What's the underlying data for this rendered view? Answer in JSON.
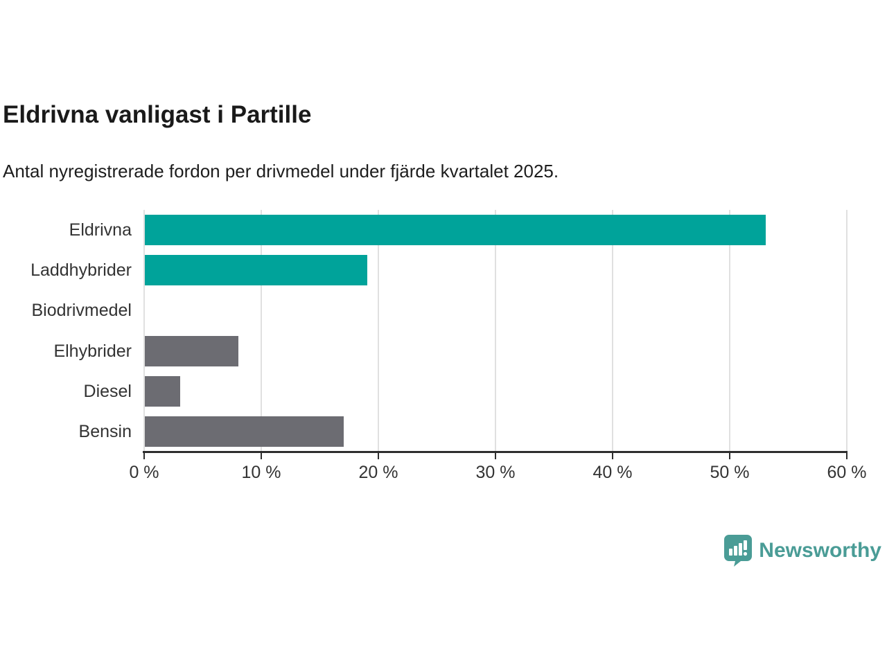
{
  "header": {
    "title": "Eldrivna vanligast i Partille",
    "subtitle": "Antal nyregistrerade fordon per drivmedel under fjärde kvartalet 2025."
  },
  "chart_data": {
    "type": "bar",
    "orientation": "horizontal",
    "title": "Eldrivna vanligast i Partille",
    "subtitle": "Antal nyregistrerade fordon per drivmedel under fjärde kvartalet 2025.",
    "categories": [
      "Eldrivna",
      "Laddhybrider",
      "Biodrivmedel",
      "Elhybrider",
      "Diesel",
      "Bensin"
    ],
    "values": [
      53,
      19,
      0,
      8,
      3,
      17
    ],
    "unit": "%",
    "xlim": [
      0,
      60
    ],
    "x_ticks": [
      0,
      10,
      20,
      30,
      40,
      50,
      60
    ],
    "x_tick_labels": [
      "0 %",
      "10 %",
      "20 %",
      "30 %",
      "40 %",
      "50 %",
      "60 %"
    ],
    "bar_colors": [
      "#00a39a",
      "#00a39a",
      "#6c6c72",
      "#6c6c72",
      "#6c6c72",
      "#6c6c72"
    ],
    "grid": true,
    "xlabel": "",
    "ylabel": ""
  },
  "colors": {
    "accent_teal": "#00a39a",
    "neutral_gray": "#6c6c72",
    "gridline": "#e0e0e0",
    "axis": "#2e2e2e",
    "text": "#333333",
    "logo_teal": "#4a9c96"
  },
  "footer": {
    "brand": "Newsworthy",
    "logo_icon": "newsworthy-speech-bubble-chart-icon"
  }
}
